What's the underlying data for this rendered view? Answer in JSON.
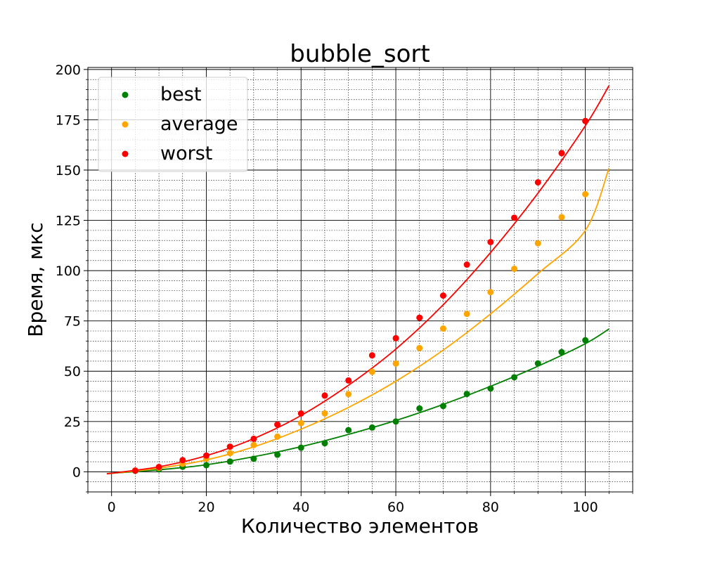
{
  "chart_data": {
    "type": "scatter",
    "title": "bubble_sort",
    "xlabel": "Количество элементов",
    "ylabel": "Время, мкс",
    "xlim": [
      -5,
      110
    ],
    "ylim": [
      -10,
      201
    ],
    "xticks": [
      0,
      20,
      40,
      60,
      80,
      100
    ],
    "xtick_labels": [
      "0",
      "20",
      "40",
      "60",
      "80",
      "100"
    ],
    "yticks": [
      0,
      25,
      50,
      75,
      100,
      125,
      150,
      175,
      200
    ],
    "ytick_labels": [
      "0",
      "25",
      "50",
      "75",
      "100",
      "125",
      "150",
      "175",
      "200"
    ],
    "grid": "major and minor",
    "legend_position": "upper-left",
    "x": [
      5,
      10,
      15,
      20,
      25,
      30,
      35,
      40,
      45,
      50,
      55,
      60,
      65,
      70,
      75,
      80,
      85,
      90,
      95,
      100
    ],
    "series": [
      {
        "name": "best",
        "color": "#008000",
        "values": [
          0.5,
          1.2,
          2.5,
          3.3,
          5.1,
          6.5,
          8.5,
          12.0,
          14.2,
          20.7,
          22.0,
          25.0,
          31.5,
          32.7,
          38.7,
          41.4,
          47.0,
          53.9,
          59.5,
          65.4
        ],
        "fit_curve": {
          "from": -1,
          "to": 105,
          "points": [
            [
              -1,
              -0.9
            ],
            [
              10,
              1.0
            ],
            [
              20,
              3.5
            ],
            [
              30,
              7.5
            ],
            [
              40,
              12.5
            ],
            [
              50,
              18.6
            ],
            [
              60,
              25.5
            ],
            [
              70,
              33.5
            ],
            [
              80,
              42.5
            ],
            [
              90,
              52.5
            ],
            [
              100,
              63.7
            ],
            [
              105,
              71.0
            ]
          ]
        }
      },
      {
        "name": "average",
        "color": "#FFA500",
        "values": [
          0.6,
          2.0,
          4.0,
          6.5,
          9.3,
          13.3,
          17.5,
          24.2,
          29.0,
          38.6,
          49.7,
          53.8,
          61.5,
          71.2,
          78.5,
          89.3,
          100.9,
          113.6,
          126.6,
          138.0
        ],
        "fit_curve": {
          "from": -1,
          "to": 105,
          "points": [
            [
              -1,
              -1.0
            ],
            [
              10,
              1.8
            ],
            [
              20,
              5.9
            ],
            [
              30,
              12.4
            ],
            [
              40,
              21.2
            ],
            [
              50,
              32.0
            ],
            [
              60,
              45.0
            ],
            [
              70,
              60.5
            ],
            [
              80,
              78.5
            ],
            [
              90,
              98.5
            ],
            [
              100,
              120.0
            ],
            [
              105,
              151.0
            ]
          ]
        }
      },
      {
        "name": "worst",
        "color": "#FF0000",
        "values": [
          0.6,
          2.4,
          5.8,
          8.1,
          12.5,
          16.4,
          23.5,
          29.0,
          37.9,
          45.4,
          57.9,
          66.4,
          76.6,
          87.6,
          103.0,
          114.2,
          126.3,
          143.9,
          158.4,
          174.4
        ],
        "fit_curve": {
          "from": -1,
          "to": 105,
          "points": [
            [
              -1,
              -1.0
            ],
            [
              10,
              2.5
            ],
            [
              20,
              8.0
            ],
            [
              30,
              16.5
            ],
            [
              40,
              28.0
            ],
            [
              50,
              43.0
            ],
            [
              60,
              61.0
            ],
            [
              70,
              83.0
            ],
            [
              80,
              109.0
            ],
            [
              90,
              138.5
            ],
            [
              100,
              172.0
            ],
            [
              105,
              192.0
            ]
          ]
        }
      }
    ]
  }
}
